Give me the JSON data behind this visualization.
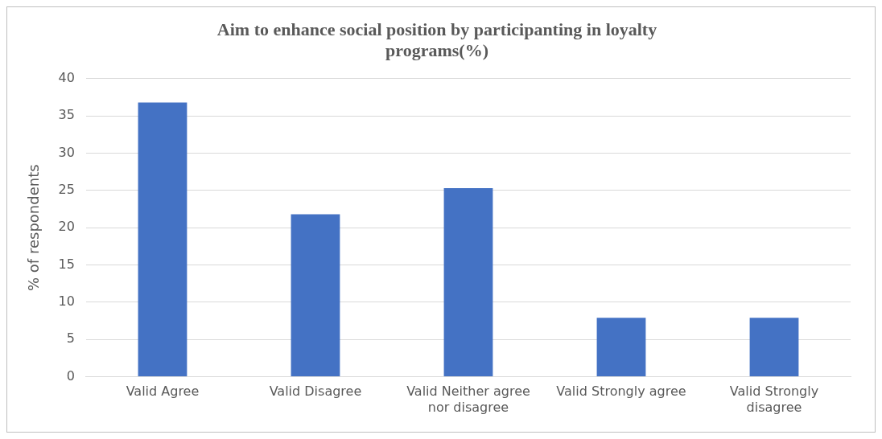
{
  "chart_data": {
    "type": "bar",
    "title": "Aim to enhance social position by participanting in loyalty programs(%)",
    "ylabel": "% of respondents",
    "categories": [
      "Valid Agree",
      "Valid Disagree",
      "Valid Neither agree nor disagree",
      "Valid Strongly agree",
      "Valid Strongly disagree"
    ],
    "values": [
      36.8,
      21.8,
      25.3,
      7.9,
      7.9
    ],
    "color": "#4472c4",
    "ylim": [
      0,
      40
    ],
    "yticks": [
      0,
      5,
      10,
      15,
      20,
      25,
      30,
      35,
      40
    ],
    "grid": "y",
    "legend": false
  }
}
